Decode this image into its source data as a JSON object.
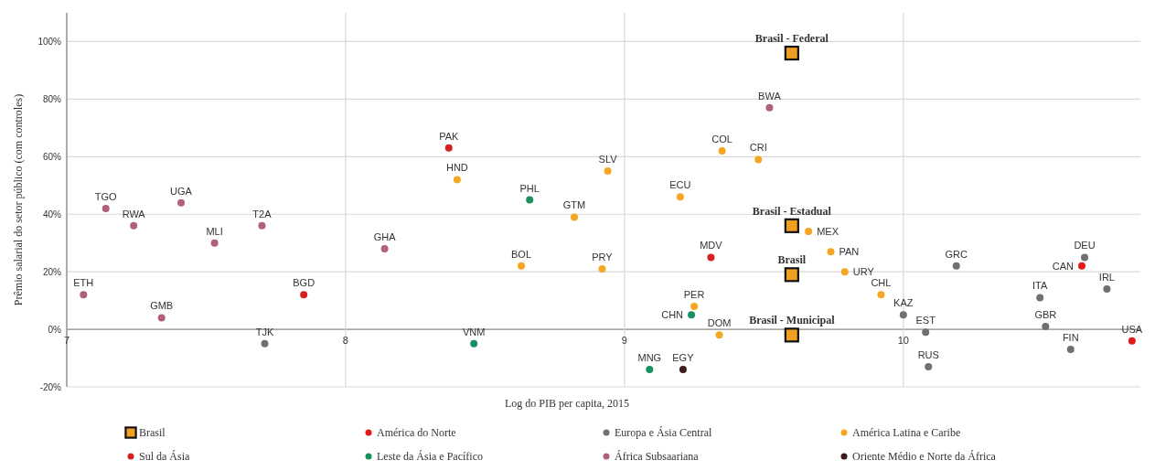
{
  "chart_data": {
    "type": "scatter",
    "xlabel": "Log do PIB per capita, 2015",
    "ylabel": "Prêmio salarial do setor público (com controles)",
    "xlim": [
      7,
      10.85
    ],
    "xticks": [
      7,
      8,
      9,
      10
    ],
    "ylim": [
      -20,
      110
    ],
    "yticks": [
      {
        "value": -20,
        "label": "-20%"
      },
      {
        "value": 0,
        "label": "0%"
      },
      {
        "value": 20,
        "label": "20%"
      },
      {
        "value": 40,
        "label": "40%"
      },
      {
        "value": 60,
        "label": "60%"
      },
      {
        "value": 80,
        "label": "80%"
      },
      {
        "value": 100,
        "label": "100%"
      }
    ],
    "grid": true,
    "legend": "bottom",
    "marker": "circle",
    "series": [
      {
        "name": "Brasil",
        "color": "#f0a020",
        "marker": "square",
        "x": [
          9.6,
          9.6,
          9.6,
          9.6
        ],
        "values": [
          96,
          36,
          19,
          -2
        ]
      },
      {
        "name": "América do Norte",
        "color": "#e31a1c",
        "x": [
          10.64,
          10.82
        ],
        "values": [
          22,
          -4
        ]
      },
      {
        "name": "Europa e Ásia Central",
        "color": "#707070",
        "x": [
          7.71,
          10.0,
          10.08,
          10.09,
          10.19,
          10.49,
          10.51,
          10.6,
          10.65,
          10.73
        ],
        "values": [
          -5,
          5,
          -1,
          -13,
          22,
          11,
          1,
          -7,
          25,
          14
        ]
      },
      {
        "name": "América Latina e Caribe",
        "color": "#f5a623",
        "x": [
          8.4,
          8.63,
          8.82,
          8.94,
          8.92,
          9.2,
          9.25,
          9.34,
          9.35,
          9.48,
          9.66,
          9.74,
          9.79,
          9.92
        ],
        "values": [
          52,
          22,
          39,
          55,
          21,
          46,
          8,
          -2,
          62,
          59,
          34,
          27,
          20,
          12
        ]
      },
      {
        "name": "Sul da Ásia",
        "color": "#d42020",
        "x": [
          7.85,
          8.37,
          9.31
        ],
        "values": [
          12,
          63,
          25
        ]
      },
      {
        "name": "Leste da Ásia e Pacífico",
        "color": "#1a9060",
        "x": [
          8.46,
          8.66,
          9.09,
          9.24
        ],
        "values": [
          -5,
          45,
          -14,
          5
        ]
      },
      {
        "name": "África Subsaariana",
        "color": "#b0607e",
        "x": [
          7.06,
          7.14,
          7.24,
          7.34,
          7.41,
          7.53,
          7.7,
          8.14,
          9.52
        ],
        "values": [
          12,
          42,
          36,
          4,
          44,
          30,
          36,
          28,
          77
        ]
      },
      {
        "name": "Oriente Médio e Norte da África",
        "color": "#3a1c1c",
        "x": [
          9.21
        ],
        "values": [
          -14
        ]
      }
    ],
    "annotations": [
      {
        "text": "Brasil - Federal",
        "x": 9.6,
        "y": 96
      },
      {
        "text": "Brasil - Estadual",
        "x": 9.6,
        "y": 36
      },
      {
        "text": "Brasil",
        "x": 9.6,
        "y": 19
      },
      {
        "text": "Brasil - Municipal",
        "x": 9.6,
        "y": -2
      },
      {
        "text": "CAN",
        "x": 10.64,
        "y": 22
      },
      {
        "text": "USA",
        "x": 10.82,
        "y": -4
      },
      {
        "text": "TJK",
        "x": 7.71,
        "y": -5
      },
      {
        "text": "KAZ",
        "x": 10.0,
        "y": 5
      },
      {
        "text": "EST",
        "x": 10.08,
        "y": -1
      },
      {
        "text": "RUS",
        "x": 10.09,
        "y": -13
      },
      {
        "text": "GRC",
        "x": 10.19,
        "y": 22
      },
      {
        "text": "ITA",
        "x": 10.49,
        "y": 11
      },
      {
        "text": "GBR",
        "x": 10.51,
        "y": 1
      },
      {
        "text": "FIN",
        "x": 10.6,
        "y": -7
      },
      {
        "text": "DEU",
        "x": 10.65,
        "y": 25
      },
      {
        "text": "IRL",
        "x": 10.73,
        "y": 14
      },
      {
        "text": "HND",
        "x": 8.4,
        "y": 52
      },
      {
        "text": "BOL",
        "x": 8.63,
        "y": 22
      },
      {
        "text": "GTM",
        "x": 8.82,
        "y": 39
      },
      {
        "text": "SLV",
        "x": 8.94,
        "y": 55
      },
      {
        "text": "PRY",
        "x": 8.92,
        "y": 21
      },
      {
        "text": "ECU",
        "x": 9.2,
        "y": 46
      },
      {
        "text": "PER",
        "x": 9.25,
        "y": 8
      },
      {
        "text": "DOM",
        "x": 9.34,
        "y": -2
      },
      {
        "text": "COL",
        "x": 9.35,
        "y": 62
      },
      {
        "text": "CRI",
        "x": 9.48,
        "y": 59
      },
      {
        "text": "MEX",
        "x": 9.66,
        "y": 34
      },
      {
        "text": "PAN",
        "x": 9.74,
        "y": 27
      },
      {
        "text": "URY",
        "x": 9.79,
        "y": 20
      },
      {
        "text": "CHL",
        "x": 9.92,
        "y": 12
      },
      {
        "text": "BGD",
        "x": 7.85,
        "y": 12
      },
      {
        "text": "PAK",
        "x": 8.37,
        "y": 63
      },
      {
        "text": "MDV",
        "x": 9.31,
        "y": 25
      },
      {
        "text": "VNM",
        "x": 8.46,
        "y": -5
      },
      {
        "text": "PHL",
        "x": 8.66,
        "y": 45
      },
      {
        "text": "MNG",
        "x": 9.09,
        "y": -14
      },
      {
        "text": "CHN",
        "x": 9.24,
        "y": 5
      },
      {
        "text": "ETH",
        "x": 7.06,
        "y": 12
      },
      {
        "text": "TGO",
        "x": 7.14,
        "y": 42
      },
      {
        "text": "RWA",
        "x": 7.24,
        "y": 36
      },
      {
        "text": "GMB",
        "x": 7.34,
        "y": 4
      },
      {
        "text": "UGA",
        "x": 7.41,
        "y": 44
      },
      {
        "text": "MLI",
        "x": 7.53,
        "y": 30
      },
      {
        "text": "T2A",
        "x": 7.7,
        "y": 36
      },
      {
        "text": "GHA",
        "x": 8.14,
        "y": 28
      },
      {
        "text": "BWA",
        "x": 9.52,
        "y": 77
      },
      {
        "text": "EGY",
        "x": 9.21,
        "y": -14
      }
    ]
  }
}
